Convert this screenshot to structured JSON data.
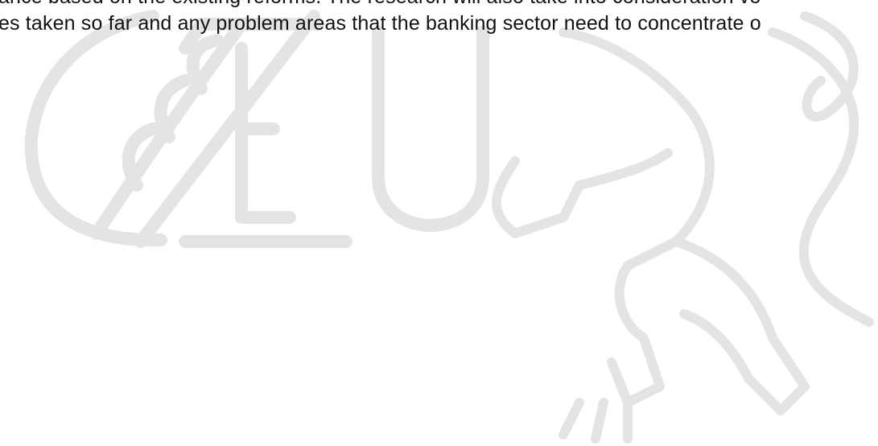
{
  "body": {
    "lines": [
      "ance based on the existing reforms. The research will also take into consideration vo",
      "es taken so far and any problem areas that the banking sector need to concentrate o"
    ]
  }
}
